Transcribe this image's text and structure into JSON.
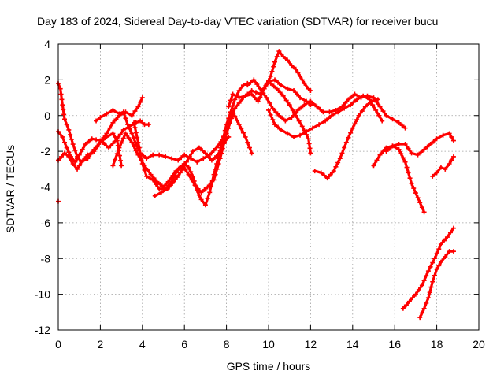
{
  "chart_data": {
    "type": "scatter",
    "title": "Day 183 of 2024, Sidereal Day-to-day VTEC variation (SDTVAR) for receiver bucu",
    "xlabel": "GPS time / hours",
    "ylabel": "SDTVAR / TECUs",
    "xlim": [
      0,
      20
    ],
    "ylim": [
      -12,
      4
    ],
    "xticks": [
      "0",
      "2",
      "4",
      "6",
      "8",
      "10",
      "12",
      "14",
      "16",
      "18",
      "20"
    ],
    "yticks": [
      "4",
      "2",
      "0",
      "-2",
      "-4",
      "-6",
      "-8",
      "-10",
      "-12"
    ],
    "grid": true,
    "marker": "+",
    "color": "#ff0000",
    "series": [
      {
        "name": "s1",
        "x": [
          0.0,
          0.1,
          0.2,
          0.3,
          0.5,
          0.7,
          0.9,
          1.1,
          1.4,
          1.7,
          2.0,
          2.3,
          2.6,
          2.8,
          3.0
        ],
        "y": [
          1.8,
          1.5,
          0.6,
          -0.2,
          -0.8,
          -1.6,
          -2.3,
          -2.6,
          -2.4,
          -1.9,
          -1.5,
          -1.2,
          -1.0,
          -1.4,
          -2.8
        ]
      },
      {
        "name": "s2",
        "x": [
          0.0,
          0.15,
          0.3,
          0.5,
          0.7,
          0.9,
          1.1,
          1.4,
          1.7,
          2.0,
          2.3,
          2.6,
          2.9,
          3.2,
          3.5,
          3.8,
          4.0
        ],
        "y": [
          -2.5,
          -2.3,
          -2.1,
          -2.3,
          -2.7,
          -3.0,
          -2.6,
          -2.2,
          -2.0,
          -1.5,
          -1.0,
          -0.4,
          0.0,
          0.2,
          0.0,
          0.5,
          1.0
        ]
      },
      {
        "name": "s3",
        "x": [
          0.0,
          0.2,
          0.4,
          0.6,
          0.8,
          1.0,
          1.3,
          1.6,
          2.0,
          2.4,
          2.8,
          3.1,
          3.4,
          3.7,
          3.9,
          4.1,
          4.3
        ],
        "y": [
          -0.9,
          -1.2,
          -1.8,
          -2.3,
          -2.6,
          -2.2,
          -1.6,
          -1.3,
          -1.4,
          -1.8,
          -1.3,
          -0.8,
          -0.6,
          -0.4,
          -0.3,
          -0.5,
          -0.5
        ]
      },
      {
        "name": "s4",
        "x": [
          1.8,
          2.0,
          2.3,
          2.6,
          2.9,
          3.1,
          3.3,
          3.5,
          3.7,
          3.9,
          4.2,
          4.5,
          4.8,
          5.1,
          5.4,
          5.7,
          6.0,
          6.3,
          6.6,
          6.9,
          7.2,
          7.6,
          8.0,
          8.4,
          8.8,
          9.2,
          9.6,
          10.0,
          10.3,
          10.6,
          10.9,
          11.2,
          11.5,
          11.8,
          12.0
        ],
        "y": [
          -0.3,
          -0.1,
          0.1,
          0.3,
          0.1,
          0.2,
          -0.5,
          -1.0,
          -1.6,
          -2.1,
          -2.4,
          -2.2,
          -2.2,
          -2.3,
          -2.4,
          -2.5,
          -2.2,
          -2.4,
          -2.6,
          -2.4,
          -2.2,
          -1.7,
          -1.0,
          0.4,
          1.0,
          1.4,
          1.2,
          1.9,
          2.0,
          1.7,
          1.5,
          1.4,
          1.0,
          0.8,
          0.6
        ]
      },
      {
        "name": "s5",
        "x": [
          2.6,
          2.9,
          3.2,
          3.5,
          3.8,
          4.1,
          4.4,
          4.7,
          5.0,
          5.3,
          5.6,
          5.9,
          6.2,
          6.5,
          6.8,
          7.1,
          7.4,
          7.7,
          8.0,
          8.3,
          8.6,
          8.9,
          9.2
        ],
        "y": [
          -2.8,
          -1.8,
          -1.0,
          -1.5,
          -2.2,
          -2.8,
          -3.3,
          -3.7,
          -4.0,
          -3.6,
          -3.1,
          -2.8,
          -3.3,
          -3.9,
          -4.3,
          -4.0,
          -3.6,
          -2.4,
          -1.0,
          0.2,
          -0.5,
          -1.2,
          -2.1
        ]
      },
      {
        "name": "s6",
        "x": [
          3.6,
          3.8,
          4.0,
          4.2,
          4.5,
          4.8,
          5.1,
          5.4,
          5.6,
          5.8,
          6.0,
          6.2,
          6.4,
          6.6,
          6.8,
          7.0,
          7.2,
          7.4,
          7.6,
          7.8,
          8.0,
          8.2,
          8.4,
          8.6,
          8.8,
          9.0
        ],
        "y": [
          -0.4,
          -1.5,
          -2.7,
          -3.4,
          -3.6,
          -4.1,
          -4.1,
          -3.7,
          -3.2,
          -2.9,
          -2.7,
          -2.9,
          -3.4,
          -4.2,
          -4.7,
          -5.0,
          -4.3,
          -3.3,
          -2.4,
          -1.5,
          -0.5,
          0.2,
          0.9,
          1.4,
          1.7,
          1.8
        ]
      },
      {
        "name": "s7",
        "x": [
          4.6,
          4.9,
          5.2,
          5.5,
          5.8,
          6.1,
          6.4,
          6.7,
          7.0,
          7.3,
          7.6,
          7.9,
          8.1
        ],
        "y": [
          -4.5,
          -4.3,
          -4.1,
          -3.7,
          -3.2,
          -2.6,
          -2.0,
          -1.8,
          -2.1,
          -2.5,
          -2.2,
          -1.5,
          -1.2
        ]
      },
      {
        "name": "s8",
        "x": [
          8.1,
          8.3,
          8.6,
          8.9,
          9.2,
          9.5,
          9.8,
          10.1,
          10.3,
          10.5,
          10.7,
          10.9,
          11.1,
          11.3,
          11.5,
          11.7,
          11.9,
          12.0
        ],
        "y": [
          0.5,
          1.2,
          1.0,
          1.1,
          1.2,
          0.8,
          1.5,
          2.2,
          3.0,
          3.6,
          3.3,
          3.1,
          2.8,
          2.6,
          2.2,
          1.8,
          1.5,
          1.4
        ]
      },
      {
        "name": "s9",
        "x": [
          9.0,
          9.3,
          9.6,
          9.9,
          10.2,
          10.5,
          10.8,
          11.1,
          11.4,
          11.7,
          12.0,
          12.3,
          12.6,
          12.9,
          13.2,
          13.5,
          13.8,
          14.1,
          14.4,
          14.7,
          15.0,
          15.3,
          15.6,
          15.9,
          16.2,
          16.5
        ],
        "y": [
          1.7,
          2.0,
          1.5,
          1.0,
          0.4,
          0.0,
          -0.3,
          -0.1,
          0.3,
          0.6,
          0.8,
          0.5,
          0.2,
          0.2,
          0.3,
          0.5,
          0.9,
          1.2,
          1.0,
          1.1,
          1.0,
          0.5,
          0.0,
          -0.2,
          -0.4,
          -0.7
        ]
      },
      {
        "name": "s10",
        "x": [
          10.0,
          10.3,
          10.6,
          10.9,
          11.2,
          11.5,
          11.8,
          12.1,
          12.4,
          12.7,
          13.0,
          13.3,
          13.6,
          13.9,
          14.2,
          14.5,
          14.8,
          15.1,
          15.4
        ],
        "y": [
          0.3,
          -0.5,
          -0.8,
          -1.0,
          -1.2,
          -1.1,
          -0.9,
          -0.7,
          -0.5,
          -0.3,
          0.0,
          0.2,
          0.4,
          0.6,
          0.9,
          1.1,
          0.9,
          0.3,
          -0.3
        ]
      },
      {
        "name": "s11",
        "x": [
          10.1,
          10.4,
          10.7,
          11.0,
          11.3,
          11.6,
          11.9,
          12.0
        ],
        "y": [
          1.8,
          1.5,
          1.1,
          0.6,
          0.0,
          -0.6,
          -1.3,
          -2.1
        ]
      },
      {
        "name": "s12",
        "x": [
          12.2,
          12.5,
          12.8,
          13.1,
          13.4,
          13.7,
          14.0,
          14.3,
          14.6,
          14.9,
          15.2
        ],
        "y": [
          -3.1,
          -3.2,
          -3.5,
          -3.1,
          -2.4,
          -1.5,
          -0.7,
          0.0,
          0.5,
          0.8,
          0.9
        ]
      },
      {
        "name": "s13",
        "x": [
          15.0,
          15.3,
          15.6,
          15.9,
          16.2,
          16.5,
          16.8,
          17.1,
          17.4
        ],
        "y": [
          -2.8,
          -2.2,
          -1.8,
          -1.7,
          -1.9,
          -2.6,
          -3.8,
          -4.6,
          -5.4
        ]
      },
      {
        "name": "s14",
        "x": [
          15.6,
          15.9,
          16.2,
          16.5,
          16.8,
          17.1,
          17.4,
          17.7,
          18.0,
          18.3,
          18.6,
          18.8
        ],
        "y": [
          -2.0,
          -1.7,
          -1.6,
          -1.6,
          -2.1,
          -2.2,
          -1.9,
          -1.6,
          -1.3,
          -1.1,
          -1.0,
          -1.4
        ]
      },
      {
        "name": "s15",
        "x": [
          17.8,
          18.0,
          18.2,
          18.4,
          18.6,
          18.8
        ],
        "y": [
          -3.4,
          -3.2,
          -2.9,
          -3.0,
          -2.7,
          -2.3
        ]
      },
      {
        "name": "s16",
        "x": [
          16.4,
          16.7,
          17.0,
          17.3,
          17.6,
          17.9,
          18.2,
          18.5,
          18.8
        ],
        "y": [
          -10.8,
          -10.4,
          -10.0,
          -9.5,
          -8.7,
          -8.0,
          -7.2,
          -6.8,
          -6.3
        ]
      },
      {
        "name": "s17",
        "x": [
          17.2,
          17.4,
          17.6,
          17.8,
          18.0,
          18.2,
          18.4,
          18.6,
          18.8
        ],
        "y": [
          -11.3,
          -10.8,
          -10.2,
          -9.3,
          -8.6,
          -8.2,
          -7.9,
          -7.6,
          -7.6
        ]
      },
      {
        "name": "s18",
        "x": [
          0.0
        ],
        "y": [
          -4.8
        ]
      }
    ]
  }
}
